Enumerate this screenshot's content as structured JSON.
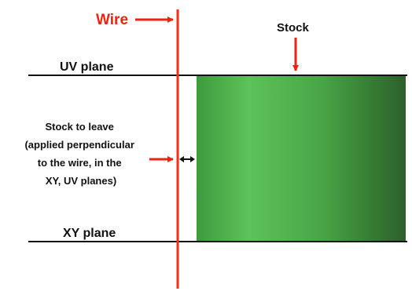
{
  "labels": {
    "wire": "Wire",
    "stock": "Stock",
    "uv_plane": "UV plane",
    "xy_plane": "XY plane",
    "stock_to_leave": [
      "Stock to leave",
      "(applied perpendicular",
      "to the wire, in the",
      "XY, UV planes)"
    ]
  },
  "colors": {
    "wire": "#ff2a1a",
    "label_red": "#ee2211",
    "stock_light": "#5dc25a",
    "stock_dark": "#2e5f2c",
    "plane_line": "#111111"
  }
}
